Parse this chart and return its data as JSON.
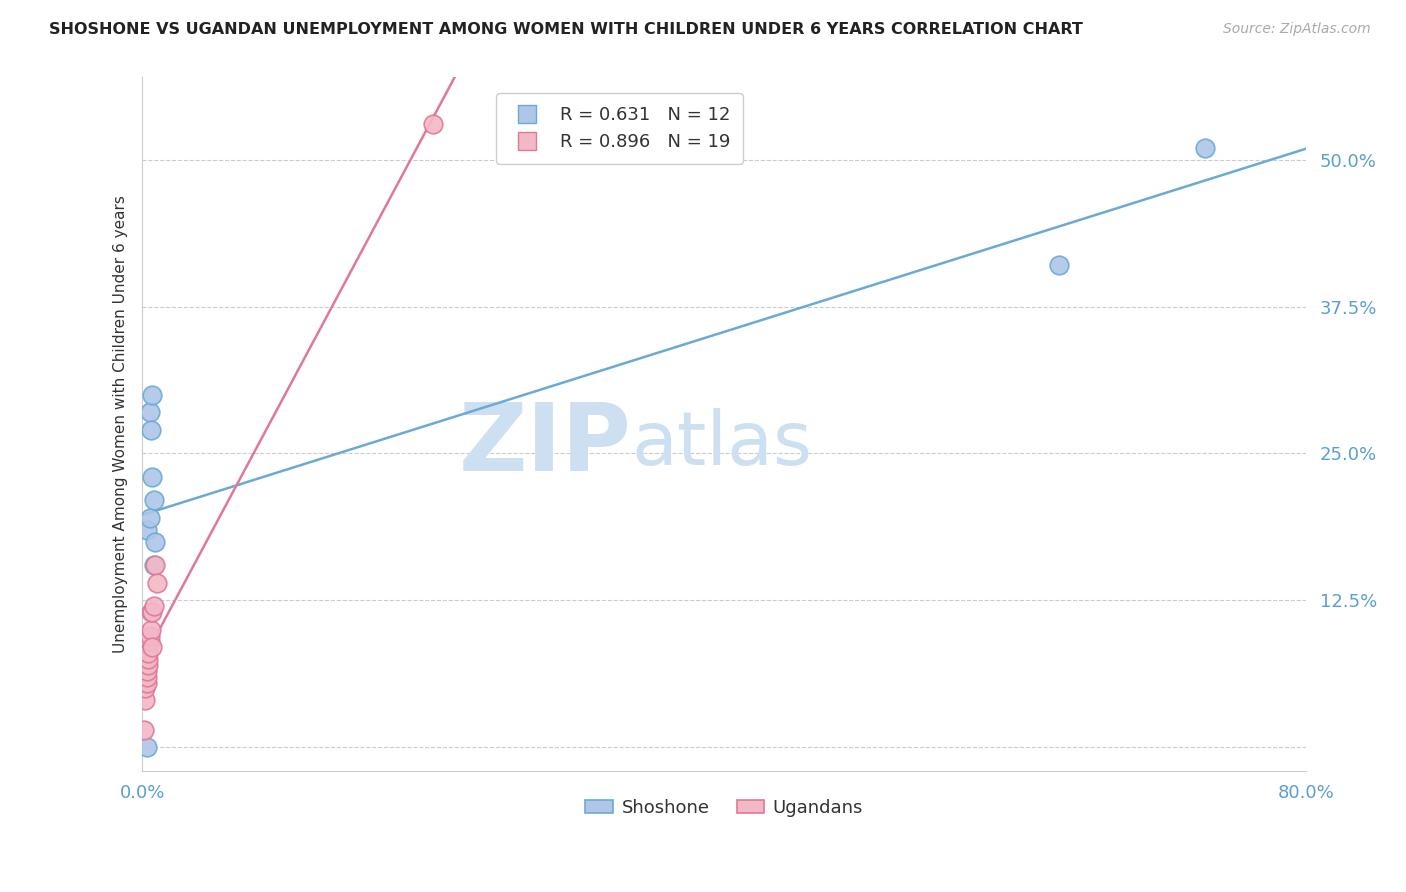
{
  "title": "SHOSHONE VS UGANDAN UNEMPLOYMENT AMONG WOMEN WITH CHILDREN UNDER 6 YEARS CORRELATION CHART",
  "source": "Source: ZipAtlas.com",
  "ylabel": "Unemployment Among Women with Children Under 6 years",
  "xlim": [
    0,
    0.8
  ],
  "ylim": [
    -0.02,
    0.57
  ],
  "yticks": [
    0.0,
    0.125,
    0.25,
    0.375,
    0.5
  ],
  "ytick_labels": [
    "",
    "12.5%",
    "25.0%",
    "37.5%",
    "50.0%"
  ],
  "xticks": [
    0.0,
    0.1,
    0.2,
    0.3,
    0.4,
    0.5,
    0.6,
    0.7,
    0.8
  ],
  "xtick_labels": [
    "0.0%",
    "",
    "",
    "",
    "",
    "",
    "",
    "",
    "80.0%"
  ],
  "shoshone_color": "#aec6e8",
  "shoshone_edge": "#6aaad4",
  "ugandan_color": "#f2b8c6",
  "ugandan_edge": "#e07898",
  "line_blue": "#6aaad4",
  "line_pink": "#e07898",
  "legend_R_blue": "0.631",
  "legend_N_blue": "12",
  "legend_R_pink": "0.896",
  "legend_N_pink": "19",
  "shoshone_x": [
    0.003,
    0.003,
    0.005,
    0.005,
    0.006,
    0.007,
    0.007,
    0.008,
    0.008,
    0.009,
    0.63,
    0.73
  ],
  "shoshone_y": [
    0.0,
    0.185,
    0.195,
    0.285,
    0.27,
    0.23,
    0.3,
    0.155,
    0.21,
    0.175,
    0.41,
    0.51
  ],
  "ugandan_x": [
    0.001,
    0.002,
    0.002,
    0.003,
    0.003,
    0.003,
    0.004,
    0.004,
    0.004,
    0.005,
    0.005,
    0.006,
    0.006,
    0.007,
    0.007,
    0.008,
    0.009,
    0.01,
    0.2
  ],
  "ugandan_y": [
    0.015,
    0.04,
    0.05,
    0.055,
    0.06,
    0.065,
    0.07,
    0.075,
    0.08,
    0.09,
    0.095,
    0.1,
    0.115,
    0.115,
    0.085,
    0.12,
    0.155,
    0.14,
    0.53
  ],
  "background_color": "#ffffff",
  "grid_color": "#cccccc",
  "title_color": "#222222",
  "axis_label_color": "#333333",
  "tick_color": "#5a9fd4",
  "watermark_zip": "ZIP",
  "watermark_atlas": "atlas",
  "watermark_color": "#cde0f2"
}
